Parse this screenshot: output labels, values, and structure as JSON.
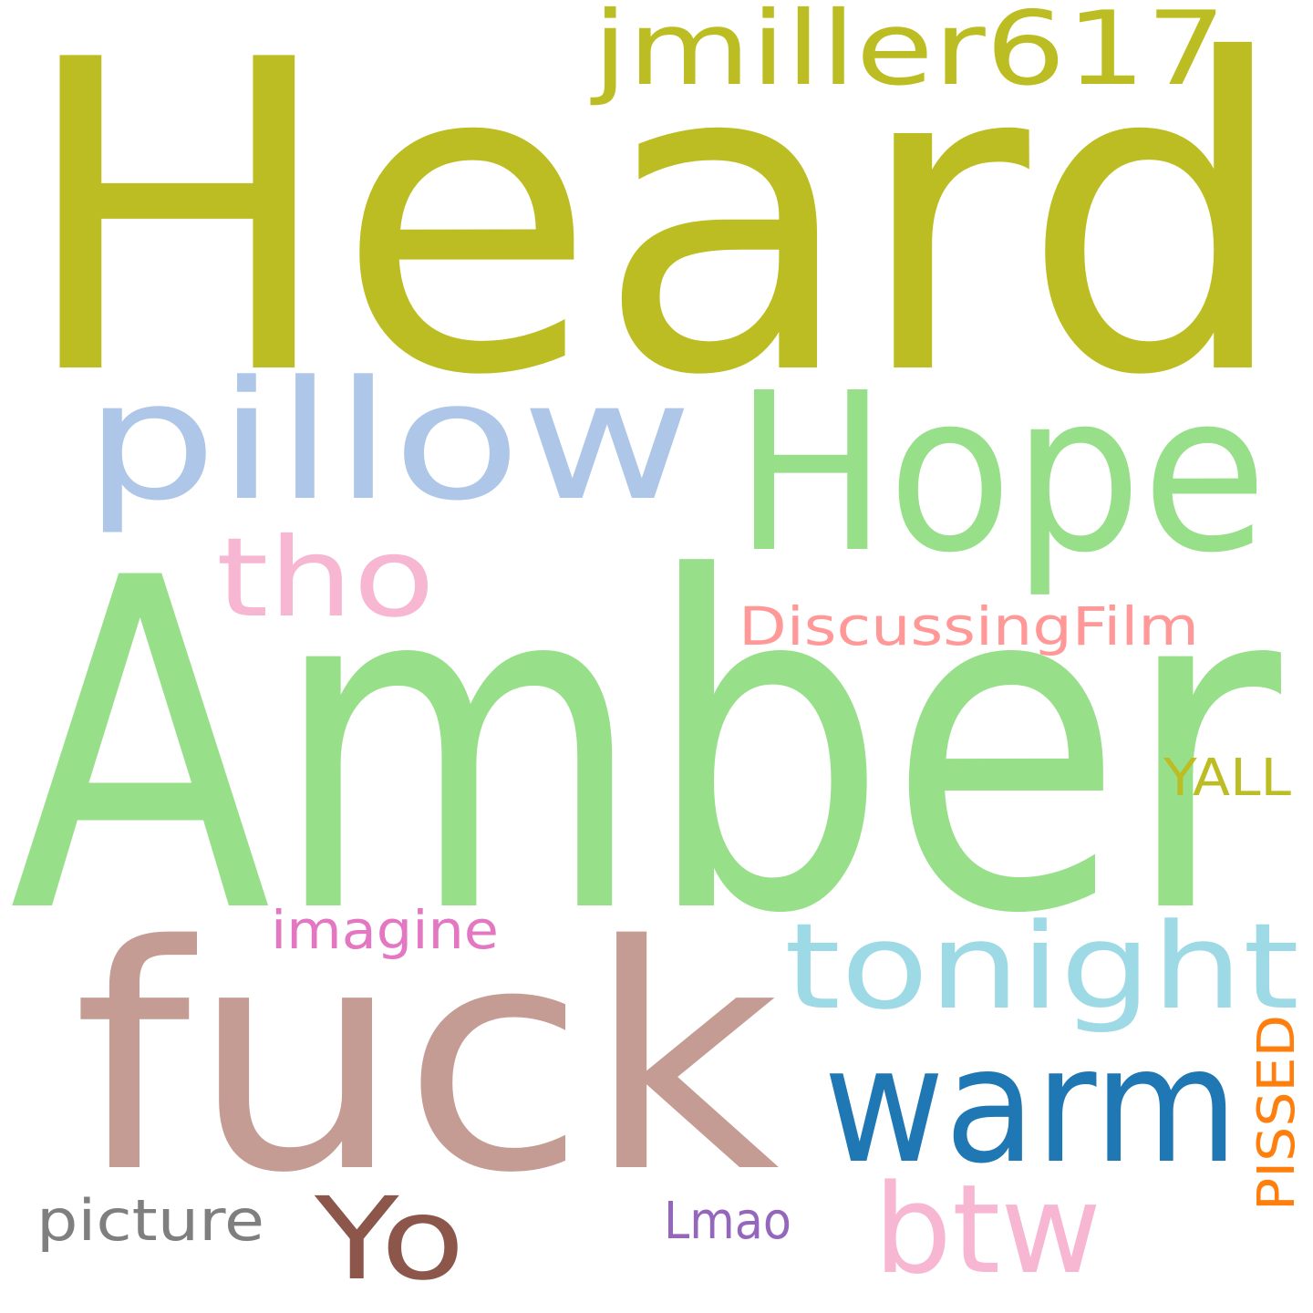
{
  "words": [
    {
      "text": "Heard",
      "color": "#bcbd22",
      "rotated": false
    },
    {
      "text": "jmiller617",
      "color": "#bcbd22",
      "rotated": false
    },
    {
      "text": "pillow",
      "color": "#aec7e8",
      "rotated": false
    },
    {
      "text": "Hope",
      "color": "#98df8a",
      "rotated": false
    },
    {
      "text": "tho",
      "color": "#f7b6d2",
      "rotated": false
    },
    {
      "text": "DiscussingFilm",
      "color": "#ff9896",
      "rotated": false
    },
    {
      "text": "Amber",
      "color": "#98df8a",
      "rotated": false
    },
    {
      "text": "YALL",
      "color": "#bcbd22",
      "rotated": false
    },
    {
      "text": "imagine",
      "color": "#e377c2",
      "rotated": false
    },
    {
      "text": "fuck",
      "color": "#c49c94",
      "rotated": false
    },
    {
      "text": "tonight",
      "color": "#9edae5",
      "rotated": false
    },
    {
      "text": "warm",
      "color": "#1f77b4",
      "rotated": false
    },
    {
      "text": "PISSED",
      "color": "#ff7f0e",
      "rotated": true
    },
    {
      "text": "picture",
      "color": "#7f7f7f",
      "rotated": false
    },
    {
      "text": "Yo",
      "color": "#8c564b",
      "rotated": false
    },
    {
      "text": "btw",
      "color": "#f7b6d2",
      "rotated": false
    },
    {
      "text": "Lmao",
      "color": "#9467bd",
      "rotated": false
    }
  ]
}
